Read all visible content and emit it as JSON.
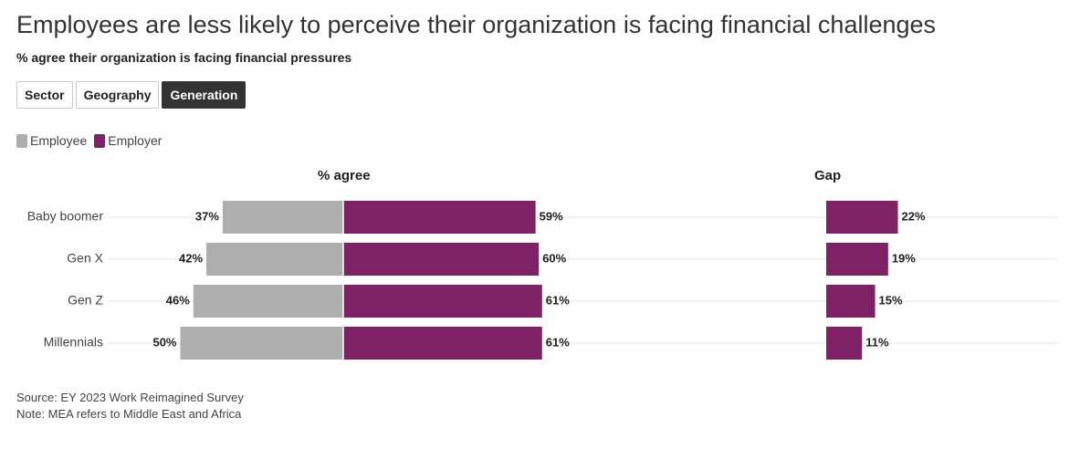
{
  "title": "Employees are less likely to perceive their organization is facing financial challenges",
  "subtitle": "% agree their organization is facing financial pressures",
  "tabs": [
    {
      "label": "Sector",
      "active": false
    },
    {
      "label": "Geography",
      "active": false
    },
    {
      "label": "Generation",
      "active": true
    }
  ],
  "colors": {
    "employee": "#aeaeae",
    "employer": "#7f2165",
    "gridline": "#e6e6e6"
  },
  "chart_data": {
    "type": "bar",
    "subtype": "diverging-bar-with-gap",
    "panels": {
      "agree_title": "% agree",
      "gap_title": "Gap"
    },
    "categories": [
      "Baby boomer",
      "Gen X",
      "Gen Z",
      "Millennials"
    ],
    "series": [
      {
        "name": "Employee",
        "values": [
          37,
          42,
          46,
          50
        ]
      },
      {
        "name": "Employer",
        "values": [
          59,
          60,
          61,
          61
        ]
      },
      {
        "name": "Gap",
        "values": [
          22,
          19,
          15,
          11
        ]
      }
    ],
    "value_suffix": "%",
    "legend": [
      "Employee",
      "Employer"
    ],
    "legend_position": "top-left",
    "xlim": [
      0,
      70
    ]
  },
  "footer": {
    "source": "Source: EY 2023 Work Reimagined Survey",
    "note": "Note: MEA refers to Middle East and Africa"
  }
}
